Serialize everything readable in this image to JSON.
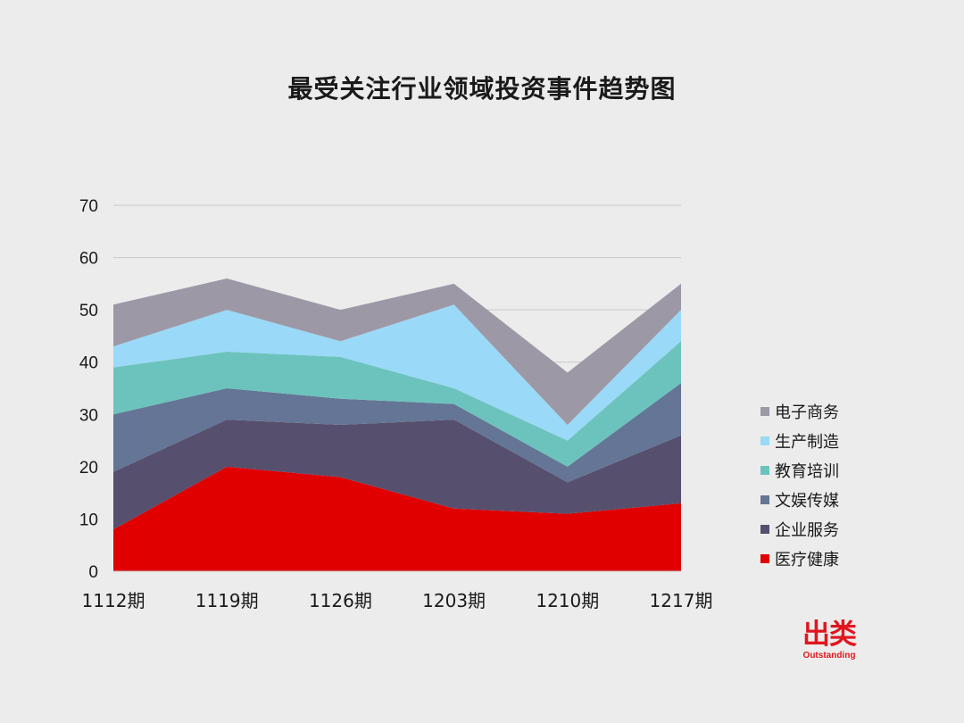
{
  "chart_data": {
    "type": "area",
    "stacked": true,
    "title": "最受关注行业领域投资事件趋势图",
    "categories": [
      "1112期",
      "1119期",
      "1126期",
      "1203期",
      "1210期",
      "1217期"
    ],
    "ylim": [
      0,
      70
    ],
    "yticks": [
      0,
      10,
      20,
      30,
      40,
      50,
      60,
      70
    ],
    "grid": true,
    "legend_position": "right",
    "series": [
      {
        "name": "医疗健康",
        "color": "#e00000",
        "values": [
          8,
          20,
          18,
          12,
          11,
          13
        ]
      },
      {
        "name": "企业服务",
        "color": "#574f6e",
        "values": [
          11,
          9,
          10,
          17,
          6,
          13
        ]
      },
      {
        "name": "文娱传媒",
        "color": "#647595",
        "values": [
          11,
          6,
          5,
          3,
          3,
          10
        ]
      },
      {
        "name": "教育培训",
        "color": "#6cc3bd",
        "values": [
          9,
          7,
          8,
          3,
          5,
          8
        ]
      },
      {
        "name": "生产制造",
        "color": "#9ad9f7",
        "values": [
          4,
          8,
          3,
          16,
          3,
          6
        ]
      },
      {
        "name": "电子商务",
        "color": "#9d98a6",
        "values": [
          8,
          6,
          6,
          4,
          10,
          5
        ]
      }
    ]
  },
  "logo": {
    "cn": "出类",
    "en": "Outstanding"
  }
}
